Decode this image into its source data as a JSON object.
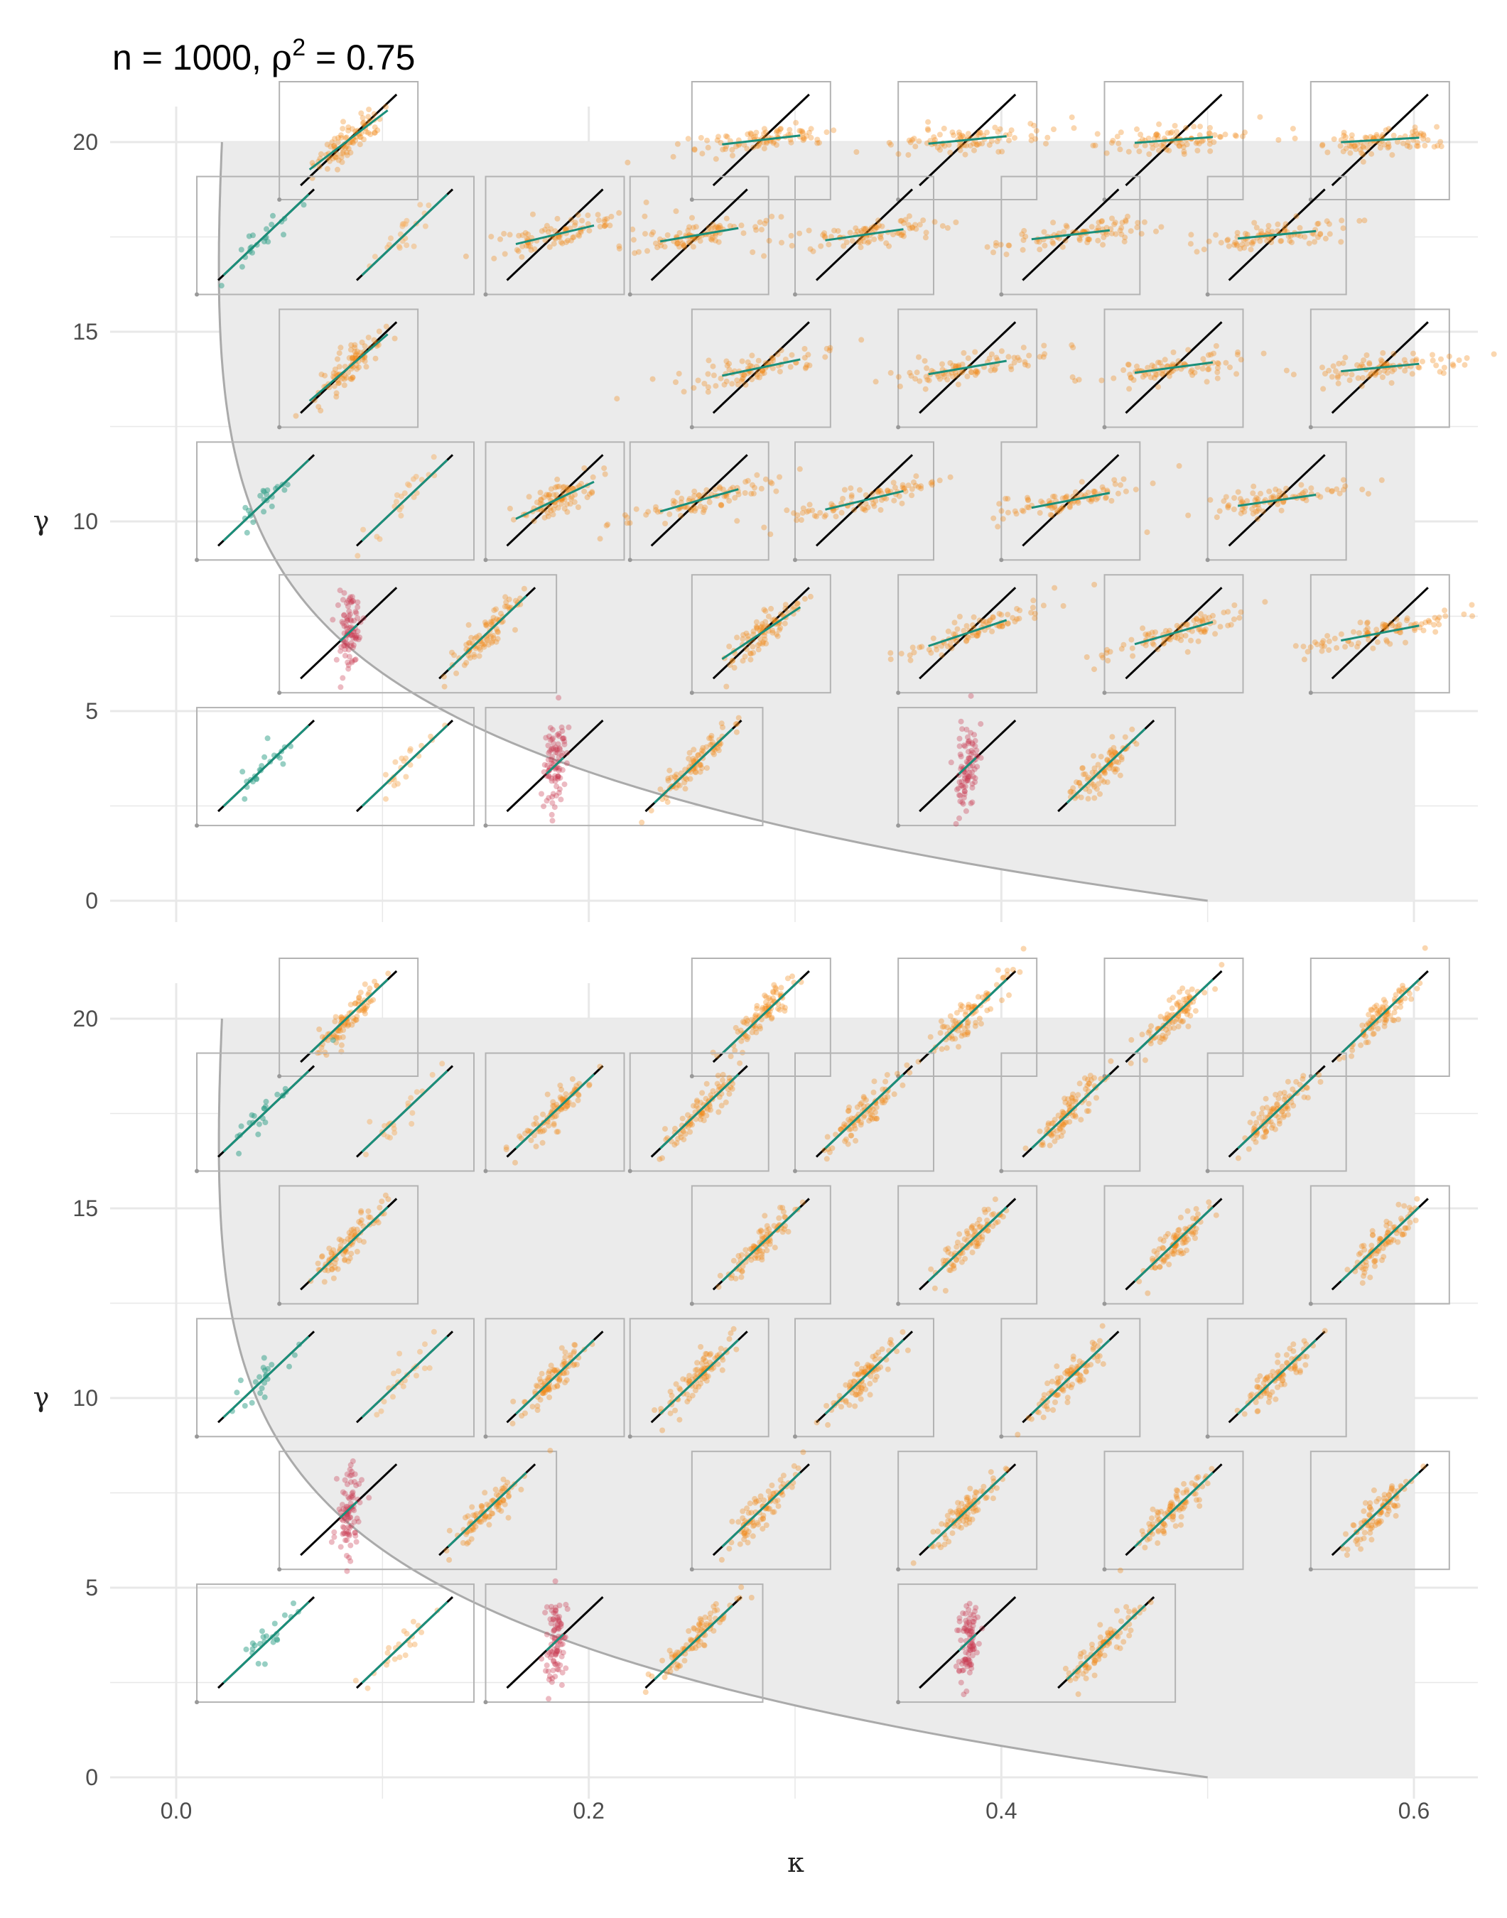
{
  "title": {
    "prefix": "n = 1000, ",
    "rho": "ρ",
    "sup": "2",
    "suffix": " = 0.75"
  },
  "colors": {
    "background": "#ffffff",
    "feasible_region": "#ebebeb",
    "grid": "#e8e8e8",
    "boundary_curve": "#aaaaaa",
    "inset_frame": "#b3b3b3",
    "reference_line": "#000000",
    "fit_line": "#1a8f7a",
    "points_orange": "#f28a1a",
    "points_red": "#c8384f",
    "points_teal": "#2f9f88",
    "points_light_orange": "#f5b36b"
  },
  "chart_data": [
    {
      "type": "scatter",
      "panel": "top",
      "xlabel": "κ",
      "ylabel": "γ",
      "xlim": [
        0.0,
        0.6
      ],
      "ylim": [
        0,
        20
      ],
      "x_ticks": [
        "0.0",
        "0.2",
        "0.4",
        "0.6"
      ],
      "y_ticks": [
        "0",
        "5",
        "10",
        "15",
        "20"
      ],
      "feasible_region": {
        "kappa_max": 0.6,
        "gamma_max": 20,
        "lower_boundary": "curve from (0.022, 20) down to (0.5, 0)"
      },
      "grid": true,
      "insets": [
        {
          "kappa": 0.05,
          "gamma": 20,
          "groups": [
            {
              "color": "orange",
              "slope": 0.8
            }
          ]
        },
        {
          "kappa": 0.25,
          "gamma": 20,
          "groups": [
            {
              "color": "orange",
              "slope": 0.12
            }
          ]
        },
        {
          "kappa": 0.35,
          "gamma": 20,
          "groups": [
            {
              "color": "orange",
              "slope": 0.1
            }
          ]
        },
        {
          "kappa": 0.45,
          "gamma": 20,
          "groups": [
            {
              "color": "orange",
              "slope": 0.08
            }
          ]
        },
        {
          "kappa": 0.55,
          "gamma": 20,
          "groups": [
            {
              "color": "orange",
              "slope": 0.06
            }
          ]
        },
        {
          "kappa": 0.01,
          "gamma": 17.5,
          "groups": [
            {
              "color": "teal",
              "slope": 1.0
            },
            {
              "color": "light_orange",
              "slope": 1.0
            }
          ]
        },
        {
          "kappa": 0.15,
          "gamma": 17.5,
          "groups": [
            {
              "color": "orange",
              "slope": 0.25
            }
          ]
        },
        {
          "kappa": 0.22,
          "gamma": 17.5,
          "groups": [
            {
              "color": "orange",
              "slope": 0.18
            }
          ]
        },
        {
          "kappa": 0.3,
          "gamma": 17.5,
          "groups": [
            {
              "color": "orange",
              "slope": 0.15
            }
          ]
        },
        {
          "kappa": 0.4,
          "gamma": 17.5,
          "groups": [
            {
              "color": "orange",
              "slope": 0.12
            }
          ]
        },
        {
          "kappa": 0.5,
          "gamma": 17.5,
          "groups": [
            {
              "color": "orange",
              "slope": 0.1
            }
          ]
        },
        {
          "kappa": 0.05,
          "gamma": 14,
          "groups": [
            {
              "color": "orange",
              "slope": 0.9
            }
          ]
        },
        {
          "kappa": 0.25,
          "gamma": 14,
          "groups": [
            {
              "color": "orange",
              "slope": 0.22
            }
          ]
        },
        {
          "kappa": 0.35,
          "gamma": 14,
          "groups": [
            {
              "color": "orange",
              "slope": 0.18
            }
          ]
        },
        {
          "kappa": 0.45,
          "gamma": 14,
          "groups": [
            {
              "color": "orange",
              "slope": 0.14
            }
          ]
        },
        {
          "kappa": 0.55,
          "gamma": 14,
          "groups": [
            {
              "color": "orange",
              "slope": 0.1
            }
          ]
        },
        {
          "kappa": 0.01,
          "gamma": 10.5,
          "groups": [
            {
              "color": "teal",
              "slope": 1.0
            },
            {
              "color": "light_orange",
              "slope": 1.0
            }
          ]
        },
        {
          "kappa": 0.15,
          "gamma": 10.5,
          "groups": [
            {
              "color": "orange",
              "slope": 0.5
            }
          ]
        },
        {
          "kappa": 0.22,
          "gamma": 10.5,
          "groups": [
            {
              "color": "orange",
              "slope": 0.3
            }
          ]
        },
        {
          "kappa": 0.3,
          "gamma": 10.5,
          "groups": [
            {
              "color": "orange",
              "slope": 0.25
            }
          ]
        },
        {
          "kappa": 0.4,
          "gamma": 10.5,
          "groups": [
            {
              "color": "orange",
              "slope": 0.2
            }
          ]
        },
        {
          "kappa": 0.5,
          "gamma": 10.5,
          "groups": [
            {
              "color": "orange",
              "slope": 0.15
            }
          ]
        },
        {
          "kappa": 0.05,
          "gamma": 7,
          "groups": [
            {
              "color": "red",
              "slope": 1.0
            },
            {
              "color": "orange",
              "slope": 1.0
            }
          ]
        },
        {
          "kappa": 0.25,
          "gamma": 7,
          "groups": [
            {
              "color": "orange",
              "slope": 0.7
            }
          ]
        },
        {
          "kappa": 0.35,
          "gamma": 7,
          "groups": [
            {
              "color": "orange",
              "slope": 0.35
            }
          ]
        },
        {
          "kappa": 0.45,
          "gamma": 7,
          "groups": [
            {
              "color": "orange",
              "slope": 0.3
            }
          ]
        },
        {
          "kappa": 0.55,
          "gamma": 7,
          "groups": [
            {
              "color": "orange",
              "slope": 0.2
            }
          ]
        },
        {
          "kappa": 0.01,
          "gamma": 3.5,
          "groups": [
            {
              "color": "teal",
              "slope": 1.0
            },
            {
              "color": "light_orange",
              "slope": 1.0
            }
          ]
        },
        {
          "kappa": 0.15,
          "gamma": 3.5,
          "groups": [
            {
              "color": "red",
              "slope": 1.0
            },
            {
              "color": "orange",
              "slope": 1.0
            }
          ]
        },
        {
          "kappa": 0.35,
          "gamma": 3.5,
          "groups": [
            {
              "color": "red",
              "slope": 1.0
            },
            {
              "color": "orange",
              "slope": 1.0
            }
          ]
        }
      ]
    },
    {
      "type": "scatter",
      "panel": "bottom",
      "xlabel": "κ",
      "ylabel": "γ",
      "xlim": [
        0.0,
        0.6
      ],
      "ylim": [
        0,
        20
      ],
      "x_ticks": [
        "0.0",
        "0.2",
        "0.4",
        "0.6"
      ],
      "y_ticks": [
        "0",
        "5",
        "10",
        "15",
        "20"
      ],
      "feasible_region": {
        "kappa_max": 0.6,
        "gamma_max": 20,
        "lower_boundary": "curve from (0.022, 20) down to (0.5, 0)"
      },
      "grid": true,
      "insets": [
        {
          "kappa": 0.05,
          "gamma": 20,
          "groups": [
            {
              "color": "orange",
              "slope": 1.0
            }
          ]
        },
        {
          "kappa": 0.25,
          "gamma": 20,
          "groups": [
            {
              "color": "orange",
              "slope": 1.0
            }
          ]
        },
        {
          "kappa": 0.35,
          "gamma": 20,
          "groups": [
            {
              "color": "orange",
              "slope": 1.0
            }
          ]
        },
        {
          "kappa": 0.45,
          "gamma": 20,
          "groups": [
            {
              "color": "orange",
              "slope": 1.0
            }
          ]
        },
        {
          "kappa": 0.55,
          "gamma": 20,
          "groups": [
            {
              "color": "orange",
              "slope": 1.0
            }
          ]
        },
        {
          "kappa": 0.01,
          "gamma": 17.5,
          "groups": [
            {
              "color": "teal",
              "slope": 1.0
            },
            {
              "color": "light_orange",
              "slope": 1.0
            }
          ]
        },
        {
          "kappa": 0.15,
          "gamma": 17.5,
          "groups": [
            {
              "color": "orange",
              "slope": 1.0
            }
          ]
        },
        {
          "kappa": 0.22,
          "gamma": 17.5,
          "groups": [
            {
              "color": "orange",
              "slope": 1.0
            }
          ]
        },
        {
          "kappa": 0.3,
          "gamma": 17.5,
          "groups": [
            {
              "color": "orange",
              "slope": 1.0
            }
          ]
        },
        {
          "kappa": 0.4,
          "gamma": 17.5,
          "groups": [
            {
              "color": "orange",
              "slope": 1.0
            }
          ]
        },
        {
          "kappa": 0.5,
          "gamma": 17.5,
          "groups": [
            {
              "color": "orange",
              "slope": 1.0
            }
          ]
        },
        {
          "kappa": 0.05,
          "gamma": 14,
          "groups": [
            {
              "color": "orange",
              "slope": 1.0
            }
          ]
        },
        {
          "kappa": 0.25,
          "gamma": 14,
          "groups": [
            {
              "color": "orange",
              "slope": 1.0
            }
          ]
        },
        {
          "kappa": 0.35,
          "gamma": 14,
          "groups": [
            {
              "color": "orange",
              "slope": 1.0
            }
          ]
        },
        {
          "kappa": 0.45,
          "gamma": 14,
          "groups": [
            {
              "color": "orange",
              "slope": 1.0
            }
          ]
        },
        {
          "kappa": 0.55,
          "gamma": 14,
          "groups": [
            {
              "color": "orange",
              "slope": 1.0
            }
          ]
        },
        {
          "kappa": 0.01,
          "gamma": 10.5,
          "groups": [
            {
              "color": "teal",
              "slope": 1.0
            },
            {
              "color": "light_orange",
              "slope": 1.0
            }
          ]
        },
        {
          "kappa": 0.15,
          "gamma": 10.5,
          "groups": [
            {
              "color": "orange",
              "slope": 1.0
            }
          ]
        },
        {
          "kappa": 0.22,
          "gamma": 10.5,
          "groups": [
            {
              "color": "orange",
              "slope": 1.0
            }
          ]
        },
        {
          "kappa": 0.3,
          "gamma": 10.5,
          "groups": [
            {
              "color": "orange",
              "slope": 1.0
            }
          ]
        },
        {
          "kappa": 0.4,
          "gamma": 10.5,
          "groups": [
            {
              "color": "orange",
              "slope": 1.0
            }
          ]
        },
        {
          "kappa": 0.5,
          "gamma": 10.5,
          "groups": [
            {
              "color": "orange",
              "slope": 1.0
            }
          ]
        },
        {
          "kappa": 0.05,
          "gamma": 7,
          "groups": [
            {
              "color": "red",
              "slope": 1.0
            },
            {
              "color": "orange",
              "slope": 1.0
            }
          ]
        },
        {
          "kappa": 0.25,
          "gamma": 7,
          "groups": [
            {
              "color": "orange",
              "slope": 1.0
            }
          ]
        },
        {
          "kappa": 0.35,
          "gamma": 7,
          "groups": [
            {
              "color": "orange",
              "slope": 1.0
            }
          ]
        },
        {
          "kappa": 0.45,
          "gamma": 7,
          "groups": [
            {
              "color": "orange",
              "slope": 1.0
            }
          ]
        },
        {
          "kappa": 0.55,
          "gamma": 7,
          "groups": [
            {
              "color": "orange",
              "slope": 1.0
            }
          ]
        },
        {
          "kappa": 0.01,
          "gamma": 3.5,
          "groups": [
            {
              "color": "teal",
              "slope": 1.0
            },
            {
              "color": "light_orange",
              "slope": 1.0
            }
          ]
        },
        {
          "kappa": 0.15,
          "gamma": 3.5,
          "groups": [
            {
              "color": "red",
              "slope": 1.0
            },
            {
              "color": "orange",
              "slope": 1.0
            }
          ]
        },
        {
          "kappa": 0.35,
          "gamma": 3.5,
          "groups": [
            {
              "color": "red",
              "slope": 1.0
            },
            {
              "color": "orange",
              "slope": 1.0
            }
          ]
        }
      ]
    }
  ]
}
